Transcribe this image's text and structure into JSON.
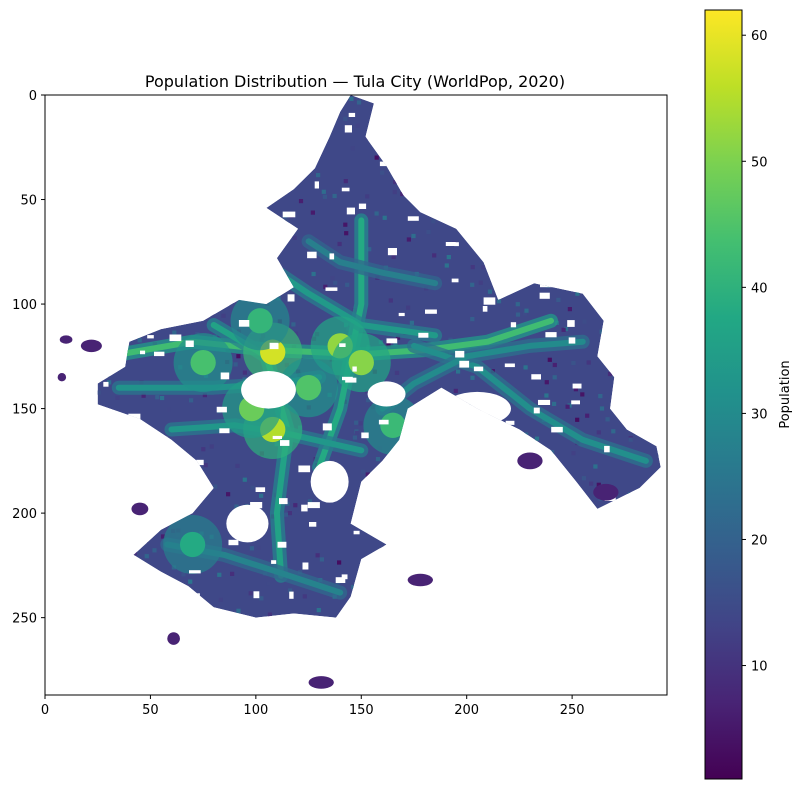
{
  "chart_data": {
    "type": "heatmap",
    "title": "Population Distribution — Tula City (WorldPop, 2020)",
    "xlabel": "",
    "ylabel": "",
    "colorbar_label": "Population",
    "colormap": "viridis",
    "xlim": [
      0,
      295
    ],
    "ylim": [
      287,
      0
    ],
    "x_ticks": [
      0,
      50,
      100,
      150,
      200,
      250
    ],
    "y_ticks": [
      0,
      50,
      100,
      150,
      200,
      250
    ],
    "color_range": [
      1,
      62
    ],
    "colorbar_ticks": [
      10,
      20,
      30,
      40,
      50,
      60
    ],
    "grid": false,
    "footprint_polygon": [
      [
        145,
        0
      ],
      [
        156,
        4
      ],
      [
        152,
        20
      ],
      [
        162,
        34
      ],
      [
        170,
        48
      ],
      [
        178,
        56
      ],
      [
        195,
        64
      ],
      [
        208,
        80
      ],
      [
        215,
        98
      ],
      [
        232,
        90
      ],
      [
        255,
        95
      ],
      [
        265,
        108
      ],
      [
        262,
        125
      ],
      [
        270,
        135
      ],
      [
        268,
        150
      ],
      [
        276,
        160
      ],
      [
        290,
        168
      ],
      [
        292,
        178
      ],
      [
        282,
        188
      ],
      [
        262,
        198
      ],
      [
        252,
        185
      ],
      [
        240,
        170
      ],
      [
        225,
        160
      ],
      [
        205,
        150
      ],
      [
        188,
        140
      ],
      [
        172,
        150
      ],
      [
        168,
        165
      ],
      [
        160,
        175
      ],
      [
        150,
        185
      ],
      [
        145,
        205
      ],
      [
        162,
        215
      ],
      [
        150,
        222
      ],
      [
        145,
        240
      ],
      [
        138,
        250
      ],
      [
        118,
        248
      ],
      [
        100,
        250
      ],
      [
        80,
        245
      ],
      [
        68,
        235
      ],
      [
        55,
        228
      ],
      [
        42,
        220
      ],
      [
        55,
        208
      ],
      [
        70,
        200
      ],
      [
        80,
        188
      ],
      [
        72,
        175
      ],
      [
        60,
        165
      ],
      [
        45,
        155
      ],
      [
        25,
        148
      ],
      [
        25,
        138
      ],
      [
        38,
        130
      ],
      [
        40,
        118
      ],
      [
        55,
        112
      ],
      [
        75,
        108
      ],
      [
        92,
        98
      ],
      [
        105,
        100
      ],
      [
        118,
        92
      ],
      [
        110,
        78
      ],
      [
        120,
        64
      ],
      [
        105,
        54
      ],
      [
        118,
        45
      ],
      [
        128,
        35
      ],
      [
        135,
        20
      ],
      [
        140,
        8
      ]
    ],
    "holes": [
      {
        "cx": 106,
        "cy": 141,
        "rx": 13,
        "ry": 9
      },
      {
        "cx": 162,
        "cy": 143,
        "rx": 9,
        "ry": 6
      },
      {
        "cx": 205,
        "cy": 150,
        "rx": 16,
        "ry": 8
      },
      {
        "cx": 135,
        "cy": 185,
        "rx": 9,
        "ry": 10
      },
      {
        "cx": 96,
        "cy": 205,
        "rx": 10,
        "ry": 9
      }
    ],
    "outlying_patches": [
      {
        "cx": 10,
        "cy": 117,
        "rx": 3,
        "ry": 2
      },
      {
        "cx": 22,
        "cy": 120,
        "rx": 5,
        "ry": 3
      },
      {
        "cx": 8,
        "cy": 135,
        "rx": 2,
        "ry": 2
      },
      {
        "cx": 61,
        "cy": 260,
        "rx": 3,
        "ry": 3
      },
      {
        "cx": 131,
        "cy": 281,
        "rx": 6,
        "ry": 3
      },
      {
        "cx": 45,
        "cy": 198,
        "rx": 4,
        "ry": 3
      },
      {
        "cx": 230,
        "cy": 175,
        "rx": 6,
        "ry": 4
      },
      {
        "cx": 178,
        "cy": 232,
        "rx": 6,
        "ry": 3
      },
      {
        "cx": 266,
        "cy": 190,
        "rx": 6,
        "ry": 4
      }
    ],
    "corridors": [
      {
        "points": [
          [
            30,
            125
          ],
          [
            70,
            118
          ],
          [
            108,
            122
          ],
          [
            150,
            124
          ],
          [
            180,
            122
          ],
          [
            210,
            118
          ],
          [
            240,
            108
          ]
        ],
        "value": 43
      },
      {
        "points": [
          [
            80,
            110
          ],
          [
            105,
            125
          ],
          [
            115,
            160
          ],
          [
            110,
            200
          ],
          [
            112,
            230
          ]
        ],
        "value": 36
      },
      {
        "points": [
          [
            150,
            60
          ],
          [
            150,
            100
          ],
          [
            145,
            125
          ],
          [
            140,
            150
          ],
          [
            130,
            178
          ]
        ],
        "value": 38
      },
      {
        "points": [
          [
            35,
            140
          ],
          [
            80,
            140
          ],
          [
            110,
            138
          ],
          [
            130,
            135
          ]
        ],
        "value": 32
      },
      {
        "points": [
          [
            60,
            160
          ],
          [
            90,
            158
          ],
          [
            115,
            162
          ],
          [
            150,
            170
          ]
        ],
        "value": 33
      },
      {
        "points": [
          [
            175,
            120
          ],
          [
            205,
            130
          ],
          [
            230,
            150
          ],
          [
            255,
            165
          ],
          [
            285,
            175
          ]
        ],
        "value": 31
      },
      {
        "points": [
          [
            58,
            215
          ],
          [
            85,
            220
          ],
          [
            110,
            228
          ],
          [
            140,
            238
          ]
        ],
        "value": 28
      },
      {
        "points": [
          [
            100,
            78
          ],
          [
            125,
            95
          ],
          [
            150,
            110
          ],
          [
            185,
            115
          ]
        ],
        "value": 34
      },
      {
        "points": [
          [
            160,
            150
          ],
          [
            175,
            138
          ],
          [
            200,
            125
          ],
          [
            230,
            120
          ],
          [
            255,
            118
          ]
        ],
        "value": 30
      },
      {
        "points": [
          [
            125,
            70
          ],
          [
            140,
            80
          ],
          [
            160,
            85
          ],
          [
            185,
            90
          ]
        ],
        "value": 27
      }
    ],
    "hotspots": [
      {
        "x": 108,
        "y": 160,
        "value": 55
      },
      {
        "x": 108,
        "y": 123,
        "value": 58
      },
      {
        "x": 140,
        "y": 120,
        "value": 52
      },
      {
        "x": 150,
        "y": 128,
        "value": 51
      },
      {
        "x": 98,
        "y": 150,
        "value": 48
      },
      {
        "x": 125,
        "y": 140,
        "value": 45
      },
      {
        "x": 165,
        "y": 158,
        "value": 42
      },
      {
        "x": 75,
        "y": 128,
        "value": 44
      },
      {
        "x": 70,
        "y": 215,
        "value": 38
      },
      {
        "x": 102,
        "y": 108,
        "value": 41
      }
    ],
    "background_value": 14
  }
}
